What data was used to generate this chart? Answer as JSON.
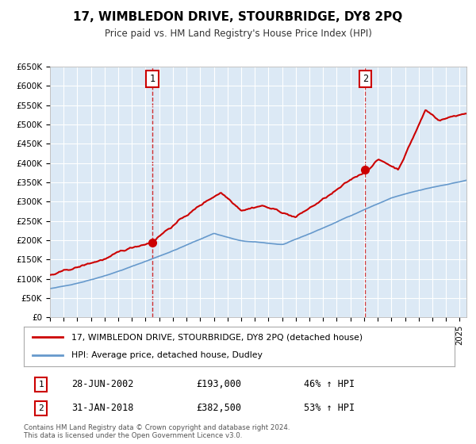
{
  "title": "17, WIMBLEDON DRIVE, STOURBRIDGE, DY8 2PQ",
  "subtitle": "Price paid vs. HM Land Registry's House Price Index (HPI)",
  "background_color": "#dce9f5",
  "fig_bg_color": "#ffffff",
  "red_color": "#cc0000",
  "blue_color": "#6699cc",
  "ylim": [
    0,
    650000
  ],
  "yticks": [
    0,
    50000,
    100000,
    150000,
    200000,
    250000,
    300000,
    350000,
    400000,
    450000,
    500000,
    550000,
    600000,
    650000
  ],
  "ytick_labels": [
    "£0",
    "£50K",
    "£100K",
    "£150K",
    "£200K",
    "£250K",
    "£300K",
    "£350K",
    "£400K",
    "£450K",
    "£500K",
    "£550K",
    "£600K",
    "£650K"
  ],
  "xmin": 1995.0,
  "xmax": 2025.5,
  "sale1_date": 2002.49,
  "sale1_price": 193000,
  "sale1_label": "1",
  "sale2_date": 2018.08,
  "sale2_price": 382500,
  "sale2_label": "2",
  "legend_line1": "17, WIMBLEDON DRIVE, STOURBRIDGE, DY8 2PQ (detached house)",
  "legend_line2": "HPI: Average price, detached house, Dudley",
  "annotation1_num": "1",
  "annotation1_date": "28-JUN-2002",
  "annotation1_price": "£193,000",
  "annotation1_hpi": "46% ↑ HPI",
  "annotation2_num": "2",
  "annotation2_date": "31-JAN-2018",
  "annotation2_price": "£382,500",
  "annotation2_hpi": "53% ↑ HPI",
  "footer1": "Contains HM Land Registry data © Crown copyright and database right 2024.",
  "footer2": "This data is licensed under the Open Government Licence v3.0."
}
